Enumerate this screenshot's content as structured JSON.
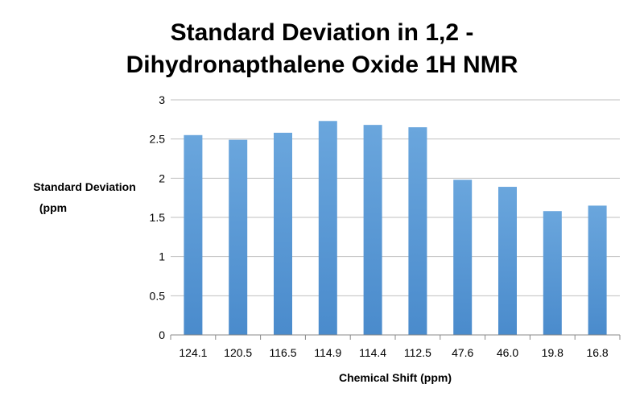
{
  "chart_data": {
    "type": "bar",
    "title_lines": [
      "Standard Deviation in 1,2 -",
      "Dihydronapthalene Oxide 1H NMR"
    ],
    "xlabel": "Chemical Shift (ppm)",
    "ylabel_lines": [
      "Standard Deviation",
      "(ppm"
    ],
    "categories": [
      "124.1",
      "120.5",
      "116.5",
      "114.9",
      "114.4",
      "112.5",
      "47.6",
      "46.0",
      "19.8",
      "16.8"
    ],
    "values": [
      2.55,
      2.49,
      2.58,
      2.73,
      2.68,
      2.65,
      1.98,
      1.89,
      1.58,
      1.65
    ],
    "ylim": [
      0,
      3
    ],
    "yticks": [
      "0",
      "0.5",
      "1",
      "1.5",
      "2",
      "2.5",
      "3"
    ],
    "grid": true,
    "legend": "none",
    "bar_color": "#5b9bd5"
  }
}
